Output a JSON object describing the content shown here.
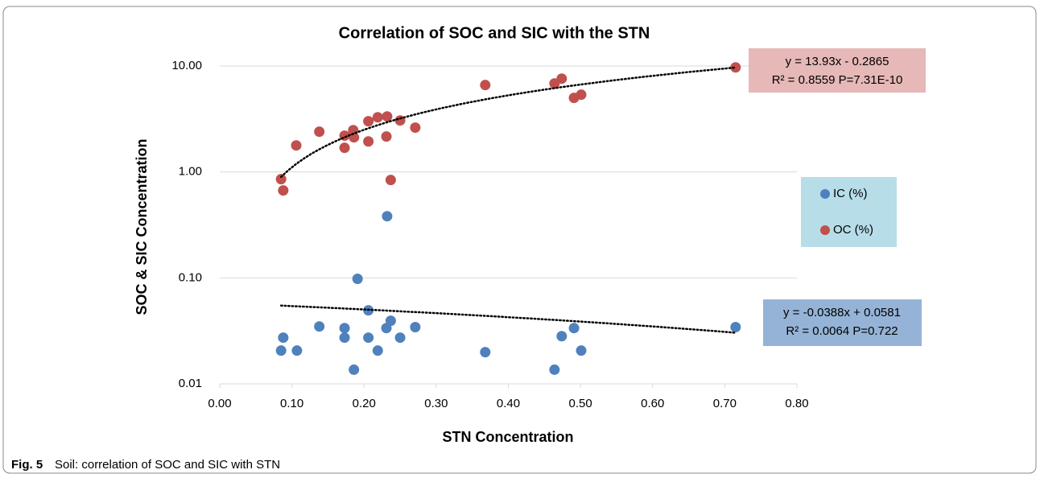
{
  "chart_data": {
    "type": "scatter",
    "title": "Correlation of SOC and SIC with the STN",
    "x_label": "STN Concentration",
    "y_label": "SOC & SIC Concentration",
    "caption_label": "Fig. 5",
    "caption": "Soil: correlation of SOC and SIC with STN",
    "log_y": true,
    "grid": true,
    "legend": "right",
    "xlim": [
      0,
      0.8
    ],
    "ylim": [
      0.01,
      10
    ],
    "xticks": [
      {
        "value": 0,
        "label": "0.00"
      },
      {
        "value": 0.1,
        "label": "0.10"
      },
      {
        "value": 0.2,
        "label": "0.20"
      },
      {
        "value": 0.3,
        "label": "0.30"
      },
      {
        "value": 0.4,
        "label": "0.40"
      },
      {
        "value": 0.5,
        "label": "0.50"
      },
      {
        "value": 0.6,
        "label": "0.60"
      },
      {
        "value": 0.7,
        "label": "0.70"
      },
      {
        "value": 0.8,
        "label": "0.80"
      }
    ],
    "yticks": [
      {
        "value": 0.01,
        "label": "0.01"
      },
      {
        "value": 0.1,
        "label": "0.10"
      },
      {
        "value": 1,
        "label": "1.00"
      },
      {
        "value": 10,
        "label": "10.00"
      }
    ],
    "series": [
      {
        "name": "IC (%)",
        "color": "#4f81bd",
        "x": [
          0.085,
          0.088,
          0.107,
          0.138,
          0.173,
          0.173,
          0.186,
          0.191,
          0.206,
          0.206,
          0.219,
          0.231,
          0.232,
          0.237,
          0.25,
          0.271,
          0.368,
          0.464,
          0.474,
          0.491,
          0.501,
          0.715
        ],
        "values": [
          0.0206,
          0.0273,
          0.0206,
          0.0348,
          0.0336,
          0.0273,
          0.0136,
          0.098,
          0.0494,
          0.0273,
          0.0206,
          0.0336,
          0.382,
          0.0394,
          0.0273,
          0.0343,
          0.0199,
          0.0136,
          0.0282,
          0.0336,
          0.0206,
          0.0343
        ],
        "trendline": {
          "slope": -0.0388,
          "intercept": 0.0581,
          "equation": "y = -0.0388x + 0.0581",
          "stats": "R² = 0.0064    P=0.722",
          "color": "#95b3d7"
        }
      },
      {
        "name": "OC (%)",
        "color": "#c0504d",
        "x": [
          0.085,
          0.088,
          0.106,
          0.138,
          0.173,
          0.173,
          0.185,
          0.186,
          0.206,
          0.206,
          0.219,
          0.231,
          0.232,
          0.237,
          0.25,
          0.271,
          0.368,
          0.464,
          0.474,
          0.491,
          0.501,
          0.715
        ],
        "values": [
          0.855,
          0.669,
          1.78,
          2.4,
          2.2,
          1.69,
          2.48,
          2.12,
          3.01,
          1.94,
          3.28,
          2.16,
          3.34,
          0.84,
          3.06,
          2.62,
          6.61,
          6.84,
          7.6,
          5.0,
          5.36,
          9.7
        ],
        "trendline": {
          "slope": 13.93,
          "intercept": -0.2865,
          "equation": "y = 13.93x - 0.2865",
          "stats": "R² = 0.8559   P=7.31E-10",
          "color": "#e6b8b7"
        }
      }
    ]
  }
}
